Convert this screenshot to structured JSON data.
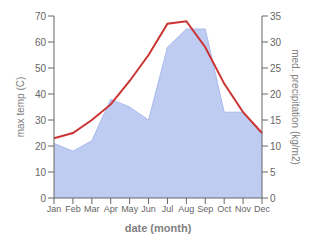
{
  "chart_data": {
    "type": "line",
    "xlabel": "date (month)",
    "ylabel": "max temp (C)",
    "y2label": "med. precipitation (kg/m2)",
    "categories": [
      "Jan",
      "Feb",
      "Mar",
      "Apr",
      "May",
      "Jun",
      "Jul",
      "Aug",
      "Sep",
      "Oct",
      "Nov",
      "Dec"
    ],
    "series": [
      {
        "type": "area",
        "color": "#aabbee",
        "values": [
          21,
          18,
          22,
          38,
          35,
          30,
          58,
          65,
          65,
          33,
          33,
          25
        ]
      },
      {
        "type": "line",
        "color": "#cc3333",
        "values": [
          23,
          25,
          30,
          36,
          45,
          55,
          67,
          68,
          58,
          44,
          33,
          25
        ]
      }
    ],
    "ylim": [
      0,
      70
    ],
    "yticks": [
      0,
      10,
      20,
      30,
      40,
      50,
      60,
      70
    ],
    "y2lim": [
      0,
      35
    ],
    "y2ticks": [
      0,
      5,
      10,
      15,
      20,
      25,
      30,
      35
    ],
    "grid": false
  }
}
